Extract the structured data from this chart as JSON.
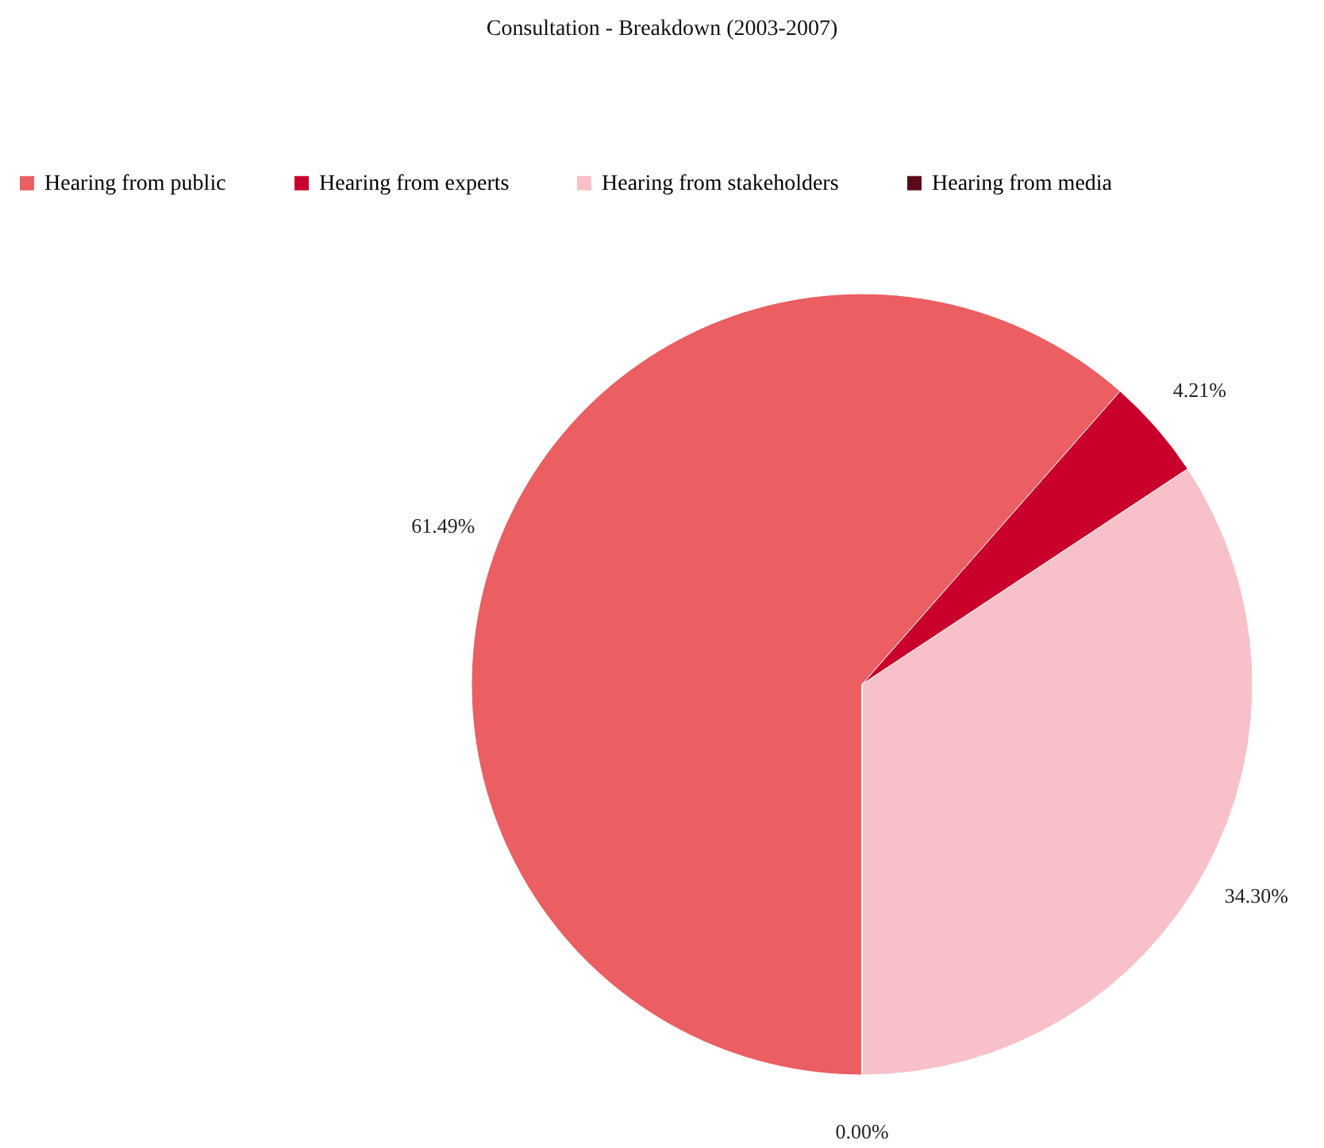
{
  "chart_data": {
    "type": "pie",
    "title": "Consultation - Breakdown (2003-2007)",
    "categories": [
      "Hearing from public",
      "Hearing from experts",
      "Hearing from stakeholders",
      "Hearing from media"
    ],
    "values": [
      61.49,
      4.21,
      34.3,
      0.0
    ],
    "colors": [
      "#eb5e62",
      "#c8002b",
      "#f8c0c8",
      "#5c0a1a"
    ],
    "value_labels": [
      "61.49%",
      "4.21%",
      "34.30%",
      "0.00%"
    ],
    "legend": "top"
  }
}
